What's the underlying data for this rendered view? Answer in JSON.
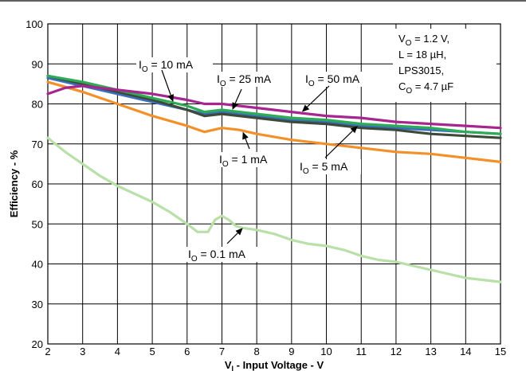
{
  "chart_data": {
    "type": "line",
    "xlabel": "V",
    "xlabel_sub": "I",
    "xlabel_rest": " - Input Voltage - V",
    "ylabel": "Efficiency - %",
    "xlim": [
      2,
      15
    ],
    "ylim": [
      20,
      100
    ],
    "x_ticks": [
      2,
      3,
      4,
      5,
      6,
      7,
      8,
      9,
      10,
      11,
      12,
      13,
      14,
      15
    ],
    "y_ticks": [
      20,
      30,
      40,
      50,
      60,
      70,
      80,
      90,
      100
    ],
    "grid": true,
    "conditions": [
      {
        "main": "V",
        "sub": "O",
        "rest": " = 1.2 V,"
      },
      {
        "main": "L = 18 µH,",
        "sub": "",
        "rest": ""
      },
      {
        "main": "LPS3015,",
        "sub": "",
        "rest": ""
      },
      {
        "main": "C",
        "sub": "O",
        "rest": " = 4.7 µF"
      }
    ],
    "series": [
      {
        "name": "IO = 0.1 mA",
        "color": "#b8e0a8",
        "x": [
          2,
          2.5,
          3,
          3.5,
          4,
          4.5,
          5,
          5.5,
          6,
          6.3,
          6.6,
          6.8,
          7,
          7.2,
          7.4,
          7.6,
          8,
          8.5,
          9,
          9.5,
          10,
          10.5,
          11,
          11.5,
          12,
          12.5,
          13,
          13.5,
          14,
          14.5,
          15
        ],
        "y": [
          71.5,
          68,
          65,
          62,
          59.5,
          57.5,
          55.5,
          53,
          50,
          48,
          48,
          51,
          52,
          51,
          49.5,
          49,
          48.5,
          47.5,
          46,
          45,
          44.5,
          43.5,
          42,
          41,
          40.5,
          39.5,
          38.5,
          37.5,
          36.5,
          36,
          35.5
        ]
      },
      {
        "name": "IO = 1 mA",
        "color": "#f4902a",
        "x": [
          2,
          3,
          4,
          5,
          6,
          6.5,
          7,
          7.5,
          8,
          9,
          10,
          11,
          12,
          13,
          14,
          15
        ],
        "y": [
          85.5,
          83,
          80,
          77,
          74.5,
          73,
          74,
          73.5,
          72.5,
          71,
          70,
          69,
          68,
          67.5,
          66.5,
          65.5
        ]
      },
      {
        "name": "IO = 5 mA",
        "color": "#3a6fbf",
        "x": [
          2,
          3,
          4,
          5,
          6,
          6.5,
          7,
          7.5,
          8,
          9,
          10,
          11,
          12,
          13,
          14,
          15
        ],
        "y": [
          86.5,
          84.5,
          82.5,
          80.5,
          78.5,
          77.5,
          78,
          77.5,
          77,
          76,
          75.5,
          74.5,
          74,
          73.5,
          73,
          72.5
        ]
      },
      {
        "name": "IO = 10 mA",
        "color": "#3d4a3a",
        "x": [
          2,
          3,
          4,
          5,
          6,
          6.5,
          7,
          7.5,
          8,
          9,
          10,
          11,
          12,
          13,
          14,
          15
        ],
        "y": [
          87,
          85,
          83,
          81,
          78.5,
          77,
          77.5,
          77,
          76.5,
          75.5,
          75,
          74,
          73.5,
          72.5,
          72,
          71.5
        ]
      },
      {
        "name": "IO = 25 mA",
        "color": "#2eab55",
        "x": [
          2,
          3,
          4,
          5,
          6,
          6.5,
          7,
          7.5,
          8,
          9,
          10,
          11,
          12,
          13,
          14,
          15
        ],
        "y": [
          87,
          85.5,
          83.5,
          81.5,
          79.5,
          78,
          78.5,
          78,
          77.5,
          76.5,
          76,
          75,
          74.5,
          74,
          73,
          72.5
        ]
      },
      {
        "name": "IO = 50 mA",
        "color": "#a6258e",
        "x": [
          2,
          2.5,
          3,
          3.5,
          4,
          5,
          6,
          6.5,
          7,
          7.5,
          8,
          9,
          10,
          11,
          12,
          13,
          14,
          15
        ],
        "y": [
          82.5,
          84,
          84.5,
          84,
          83.5,
          82.5,
          81,
          80,
          80,
          79.5,
          79,
          78,
          77,
          76.5,
          75.5,
          75,
          74.5,
          74
        ]
      }
    ],
    "annotations": [
      {
        "main": "I",
        "sub": "O",
        "rest": " = 10 mA",
        "target": [
          5.6,
          80.5
        ]
      },
      {
        "main": "I",
        "sub": "O",
        "rest": " = 25 mA",
        "target": [
          7.3,
          78.5
        ]
      },
      {
        "main": "I",
        "sub": "O",
        "rest": " = 50 mA",
        "target": [
          9.3,
          78
        ]
      },
      {
        "main": "I",
        "sub": "O",
        "rest": " = 1 mA",
        "target": [
          7.6,
          73
        ]
      },
      {
        "main": "I",
        "sub": "O",
        "rest": " = 5 mA",
        "target": [
          10.9,
          74.5
        ]
      },
      {
        "main": "I",
        "sub": "O",
        "rest": " = 0.1 mA",
        "target": [
          7.6,
          49
        ]
      }
    ]
  }
}
